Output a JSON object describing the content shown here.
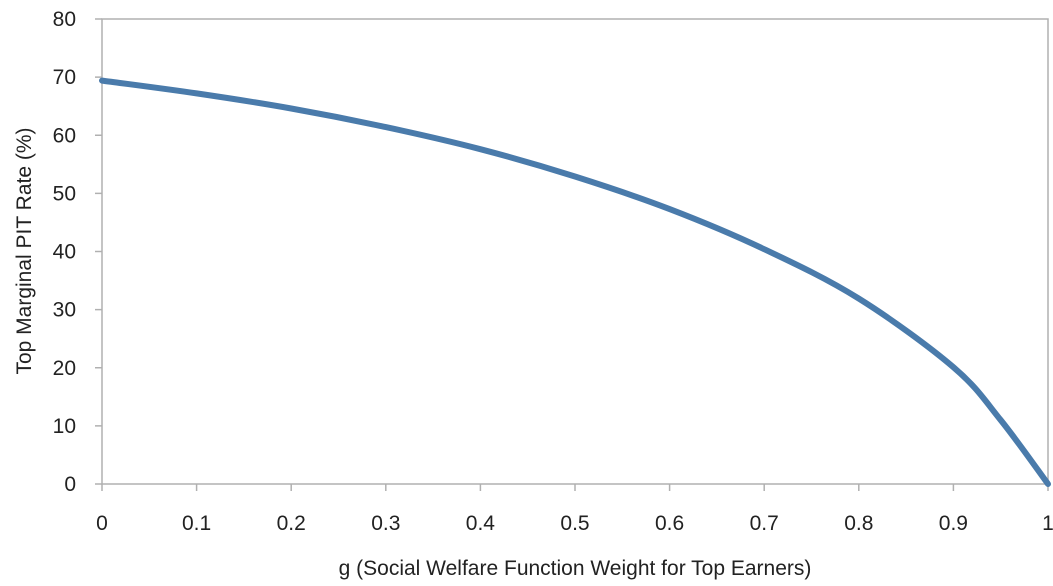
{
  "chart_data": {
    "type": "line",
    "title": "",
    "xlabel": "g (Social Welfare Function Weight for Top Earners)",
    "ylabel": "Top Marginal PIT Rate (%)",
    "xlim": [
      0,
      1
    ],
    "ylim": [
      0,
      80
    ],
    "xticks": [
      "0",
      "0.1",
      "0.2",
      "0.3",
      "0.4",
      "0.5",
      "0.6",
      "0.7",
      "0.8",
      "0.9",
      "1"
    ],
    "yticks": [
      "0",
      "10",
      "20",
      "30",
      "40",
      "50",
      "60",
      "70",
      "80"
    ],
    "grid": false,
    "legend": "none",
    "series": [
      {
        "color": "#4a7bab",
        "x": [
          0,
          0.1,
          0.2,
          0.3,
          0.4,
          0.5,
          0.6,
          0.7,
          0.8,
          0.9,
          0.95,
          1.0
        ],
        "y": [
          69.4,
          67.2,
          64.6,
          61.4,
          57.6,
          52.9,
          47.3,
          40.4,
          31.9,
          20.1,
          11.0,
          0
        ]
      }
    ]
  }
}
